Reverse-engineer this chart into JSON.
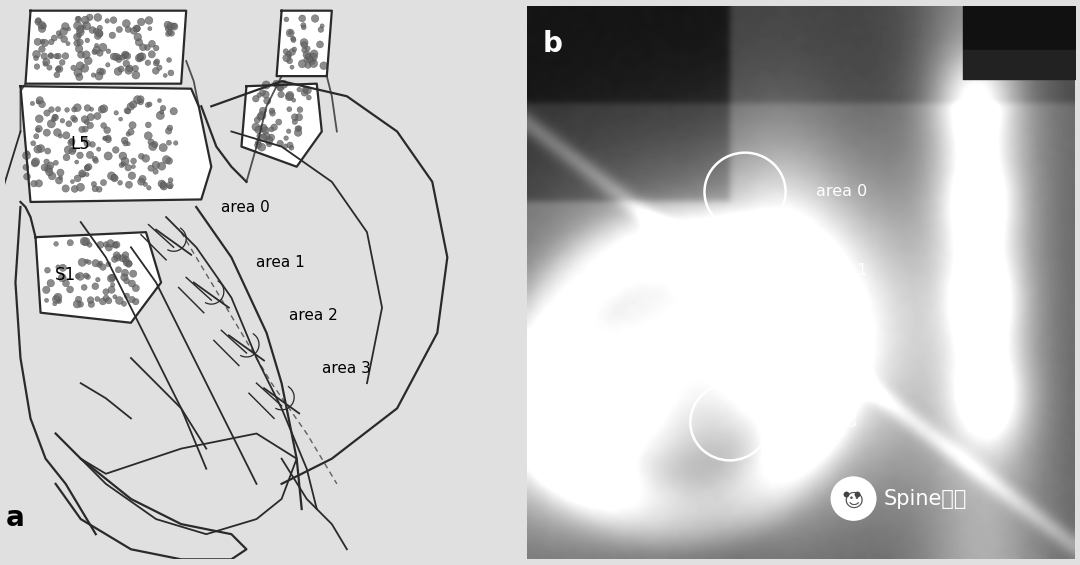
{
  "panel_a_label": "a",
  "panel_b_label": "b",
  "line_color": "#2a2a2a",
  "dot_color": "#666666",
  "area_labels": [
    "area 0",
    "area 1",
    "area 2",
    "area 3"
  ],
  "L5_label": "L5",
  "S1_label": "S1",
  "watermark_text": "Spine脊柱",
  "figsize": [
    10.8,
    5.65
  ],
  "dpi": 100,
  "bg_color": "#e0e0e0",
  "panel_a_bg": "#ffffff"
}
